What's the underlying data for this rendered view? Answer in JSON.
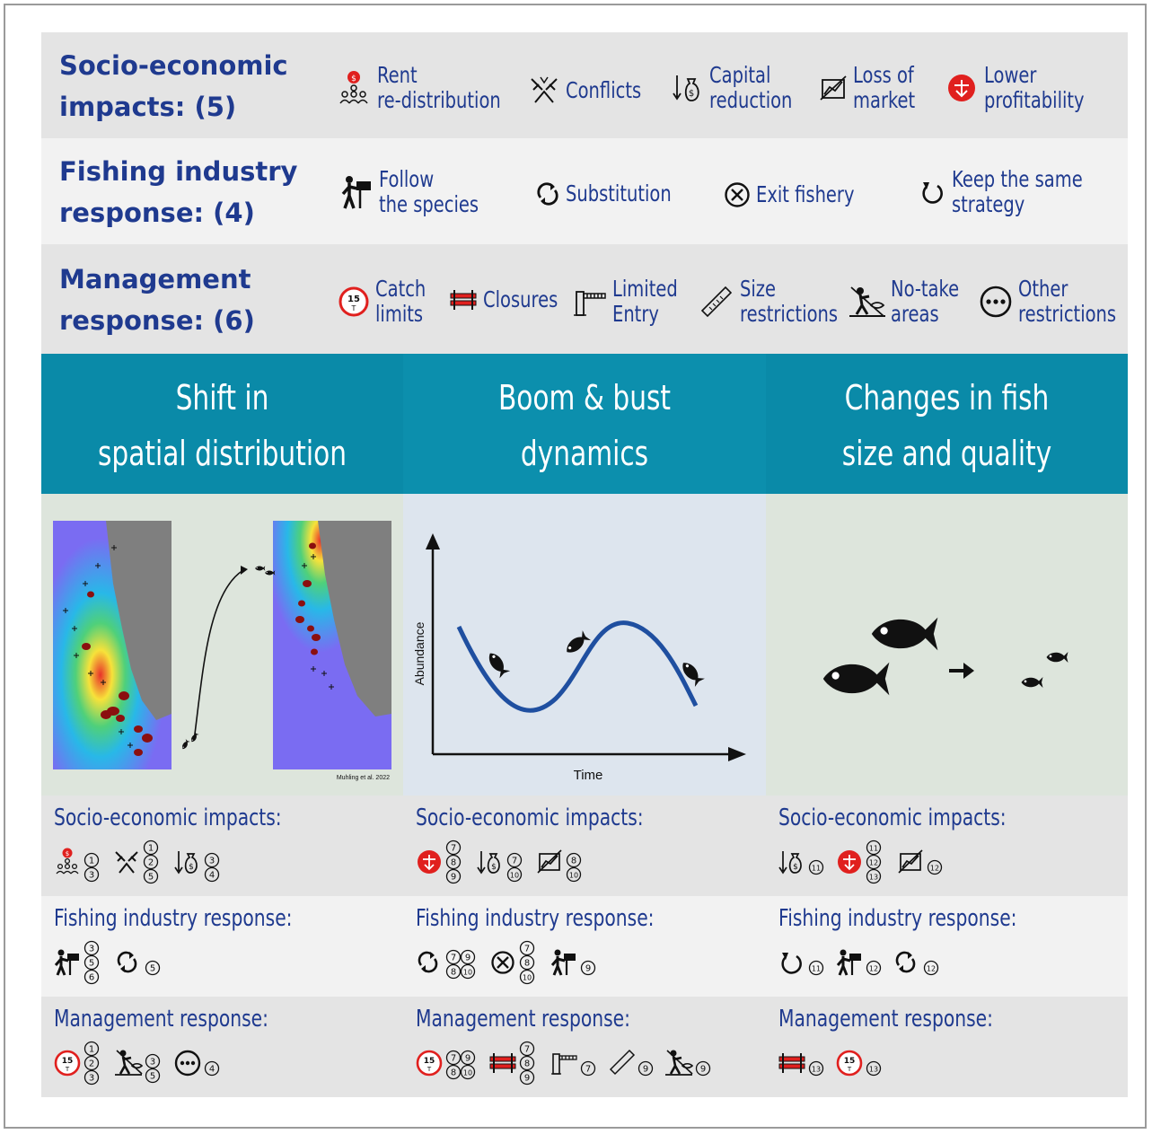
{
  "header_bands": {
    "socio": {
      "title_line1": "Socio-economic",
      "title_line2": "impacts: (5)",
      "items": [
        {
          "icon": "rent-redistribution-icon",
          "line1": "Rent",
          "line2": "re-distribution"
        },
        {
          "icon": "conflicts-icon",
          "line1": "Conflicts",
          "line2": ""
        },
        {
          "icon": "capital-reduction-icon",
          "line1": "Capital",
          "line2": "reduction"
        },
        {
          "icon": "loss-of-market-icon",
          "line1": "Loss of",
          "line2": "market"
        },
        {
          "icon": "lower-profitability-icon",
          "line1": "Lower",
          "line2": "profitability"
        }
      ]
    },
    "fishing": {
      "title_line1": "Fishing industry",
      "title_line2": "response: (4)",
      "items": [
        {
          "icon": "follow-species-icon",
          "line1": "Follow",
          "line2": "the species"
        },
        {
          "icon": "substitution-icon",
          "line1": "Substitution",
          "line2": ""
        },
        {
          "icon": "exit-fishery-icon",
          "line1": "Exit fishery",
          "line2": ""
        },
        {
          "icon": "keep-strategy-icon",
          "line1": "Keep the same",
          "line2": "strategy"
        }
      ]
    },
    "management": {
      "title_line1": "Management",
      "title_line2": "response: (6)",
      "items": [
        {
          "icon": "catch-limits-icon",
          "line1": "Catch",
          "line2": "limits"
        },
        {
          "icon": "closures-icon",
          "line1": "Closures",
          "line2": ""
        },
        {
          "icon": "limited-entry-icon",
          "line1": "Limited",
          "line2": "Entry"
        },
        {
          "icon": "size-restrictions-icon",
          "line1": "Size",
          "line2": "restrictions"
        },
        {
          "icon": "no-take-areas-icon",
          "line1": "No-take",
          "line2": "areas"
        },
        {
          "icon": "other-restrictions-icon",
          "line1": "Other",
          "line2": "restrictions"
        }
      ]
    }
  },
  "columns": [
    {
      "title_line1": "Shift in",
      "title_line2": "spatial distribution",
      "figure_credit": "Muhling et al. 2022",
      "socio_label": "Socio-economic impacts:",
      "fishing_label": "Fishing industry response:",
      "management_label": "Management response:",
      "socio_refs": [
        [
          "1",
          "3"
        ],
        [
          "1",
          "2",
          "5"
        ],
        [
          "3",
          "4"
        ]
      ],
      "fishing_refs": [
        [
          "3",
          "5",
          "6"
        ],
        [
          "5"
        ]
      ],
      "management_refs": [
        [
          "1",
          "2",
          "3"
        ],
        [
          "3",
          "5"
        ],
        [
          "4"
        ]
      ]
    },
    {
      "title_line1": "Boom & bust",
      "title_line2": "dynamics",
      "x_axis_label": "Time",
      "y_axis_label": "Abundance",
      "socio_label": "Socio-economic impacts:",
      "fishing_label": "Fishing industry response:",
      "management_label": "Management response:",
      "socio_refs": [
        [
          "7",
          "8",
          "9"
        ],
        [
          "7",
          "10"
        ],
        [
          "8",
          "10"
        ]
      ],
      "fishing_refs": [
        [
          "7",
          "9",
          "8",
          "10"
        ],
        [
          "7",
          "8",
          "10"
        ],
        [
          "9"
        ]
      ],
      "management_refs": [
        [
          "7",
          "9",
          "8",
          "10"
        ],
        [
          "7",
          "8",
          "9"
        ],
        [
          "7"
        ],
        [
          "9"
        ],
        [
          "9"
        ]
      ]
    },
    {
      "title_line1": "Changes in fish",
      "title_line2": "size and quality",
      "socio_label": "Socio-economic impacts:",
      "fishing_label": "Fishing industry response:",
      "management_label": "Management response:",
      "socio_refs": [
        [
          "11"
        ],
        [
          "11",
          "12",
          "13"
        ],
        [
          "12"
        ]
      ],
      "fishing_refs": [
        [
          "11"
        ],
        [
          "12"
        ],
        [
          "12"
        ]
      ],
      "management_refs": [
        [
          "13"
        ],
        [
          "13"
        ]
      ]
    }
  ],
  "colors": {
    "band_dark": "#e4e4e4",
    "band_light": "#f2f2f2",
    "title_blue": "#1f3a8f",
    "column_header": "#0a8aa8",
    "figure_green": "#dde5dc",
    "figure_blue": "#dde5ee",
    "curve_blue": "#1f4fa0",
    "profit_red": "#e0201e"
  }
}
